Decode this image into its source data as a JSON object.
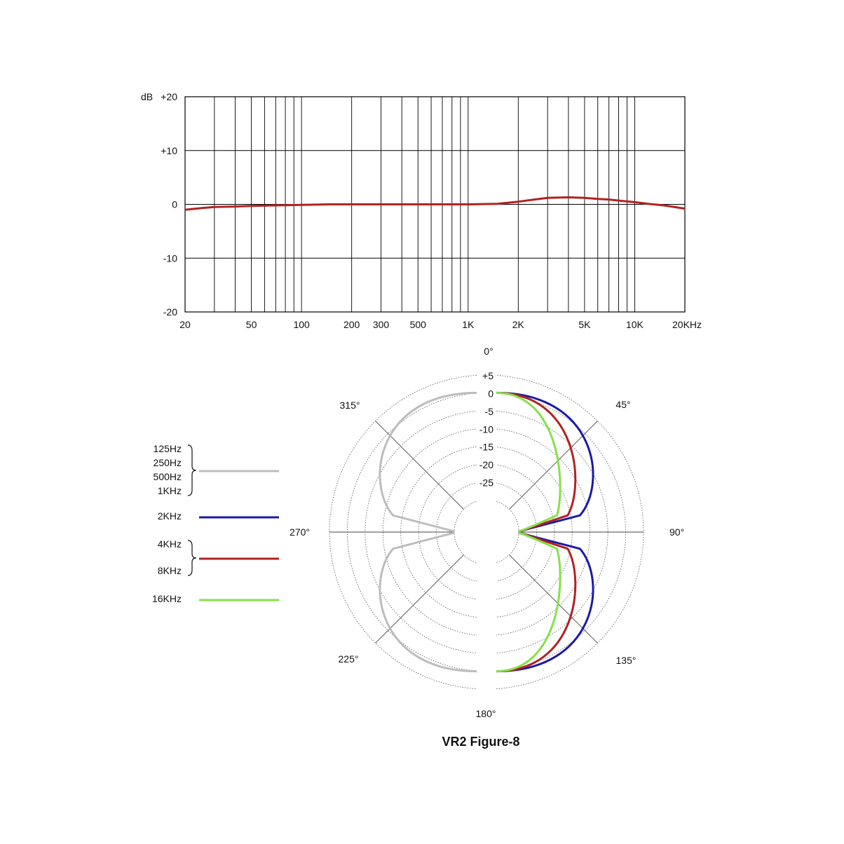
{
  "chart_data": [
    {
      "type": "line",
      "scale": "log-x",
      "ylabel": "dB",
      "y_ticks": [
        "+20",
        "+10",
        "0",
        "-10",
        "-20"
      ],
      "x_ticks": [
        "20",
        "50",
        "100",
        "200",
        "300",
        "500",
        "1K",
        "2K",
        "5K",
        "10K",
        "20KHz"
      ],
      "xlim": [
        20,
        20000
      ],
      "ylim": [
        -20,
        20
      ],
      "grid": true,
      "series": [
        {
          "color": "#b22222",
          "x": [
            20,
            25,
            30,
            40,
            50,
            70,
            100,
            150,
            200,
            300,
            500,
            700,
            1000,
            1500,
            2000,
            2500,
            3000,
            4000,
            5000,
            6000,
            7000,
            8000,
            10000,
            12000,
            15000,
            20000
          ],
          "y": [
            -1.0,
            -0.7,
            -0.5,
            -0.4,
            -0.3,
            -0.2,
            -0.1,
            0.0,
            0.0,
            0.0,
            0.0,
            0.0,
            0.0,
            0.1,
            0.5,
            0.9,
            1.2,
            1.3,
            1.2,
            1.0,
            0.9,
            0.7,
            0.4,
            0.1,
            -0.2,
            -0.8
          ]
        }
      ]
    },
    {
      "type": "polar",
      "title": "VR2 Figure-8",
      "angle_labels": [
        "0°",
        "45°",
        "90°",
        "135°",
        "180°",
        "225°",
        "270°",
        "315°"
      ],
      "r_ticks": [
        "+5",
        "0",
        "-5",
        "-10",
        "-15",
        "-20",
        "-25"
      ],
      "rlim": [
        -30,
        5
      ],
      "series": [
        {
          "label": [
            "125Hz",
            "250Hz",
            "500Hz",
            "1KHz"
          ],
          "color": "#bdbdbd",
          "side": "left",
          "shape": 1.0
        },
        {
          "label": [
            "2KHz"
          ],
          "color": "#1a1aa8",
          "side": "right",
          "shape": 1.0
        },
        {
          "label": [
            "4KHz",
            "8KHz"
          ],
          "color": "#b22222",
          "side": "right",
          "shape": 1.25
        },
        {
          "label": [
            "16KHz"
          ],
          "color": "#86e04a",
          "side": "right",
          "shape": 1.6
        }
      ]
    }
  ]
}
